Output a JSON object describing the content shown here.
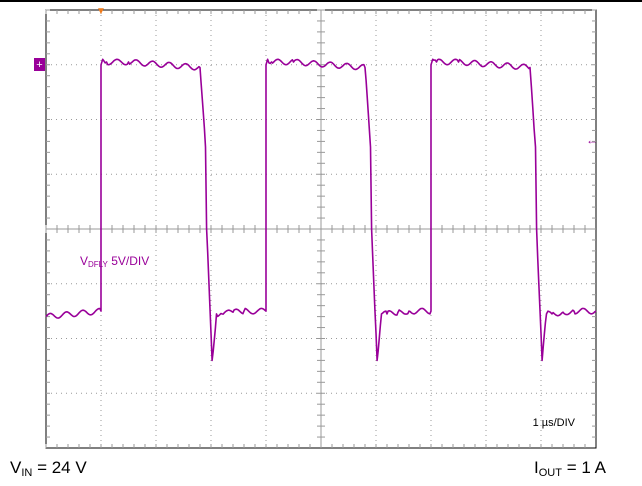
{
  "chart_data": {
    "type": "line",
    "title": "",
    "x_units_per_div": 1,
    "x_divs": 10,
    "y_divs": 8,
    "xlim": [
      0,
      10
    ],
    "ylim": [
      -4,
      4
    ],
    "grid": true,
    "series": [
      {
        "name": "VDFLY",
        "color": "#990099",
        "x": [
          0.0,
          1.0,
          1.0,
          1.03,
          1.1,
          1.5,
          2.8,
          2.9,
          2.92,
          3.0,
          3.02,
          3.1,
          3.2,
          3.4,
          3.6,
          4.0,
          4.0,
          4.03,
          4.1,
          4.5,
          5.8,
          5.9,
          5.92,
          6.0,
          6.02,
          6.1,
          6.2,
          6.4,
          6.6,
          7.0,
          7.0,
          7.03,
          7.1,
          7.5,
          8.8,
          8.9,
          8.92,
          9.0,
          9.02,
          9.1,
          9.2,
          9.4,
          9.6,
          10.0
        ],
        "y": [
          -1.6,
          -1.5,
          3.0,
          3.1,
          3.05,
          3.05,
          2.95,
          1.5,
          0.0,
          -1.9,
          -2.4,
          -1.55,
          -1.55,
          -1.52,
          -1.5,
          -1.5,
          3.0,
          3.1,
          3.05,
          3.05,
          2.95,
          1.5,
          0.0,
          -1.9,
          -2.4,
          -1.55,
          -1.55,
          -1.52,
          -1.5,
          -1.5,
          3.0,
          3.1,
          3.05,
          3.05,
          2.95,
          1.5,
          0.0,
          -1.9,
          -2.4,
          -1.55,
          -1.55,
          -1.52,
          -1.5,
          -1.5
        ]
      }
    ],
    "annotations": {
      "channel": "V",
      "channel_sub": "DFLY",
      "channel_scale": " 5V/DIV",
      "timebase_prefix": "1 ",
      "timebase_mu": "µ",
      "timebase_suffix": "s/DIV"
    },
    "channel_marker": "+",
    "trigger_marker": "▼",
    "arrow_marker": "←"
  },
  "labels": {
    "vin_main": "V",
    "vin_sub": "IN",
    "vin_value": " = 24 V",
    "iout_main": "I",
    "iout_sub": "OUT",
    "iout_value": " = 1 A"
  },
  "colors": {
    "trace": "#990099",
    "trigger": "#f07a1a",
    "grid": "#999999"
  }
}
